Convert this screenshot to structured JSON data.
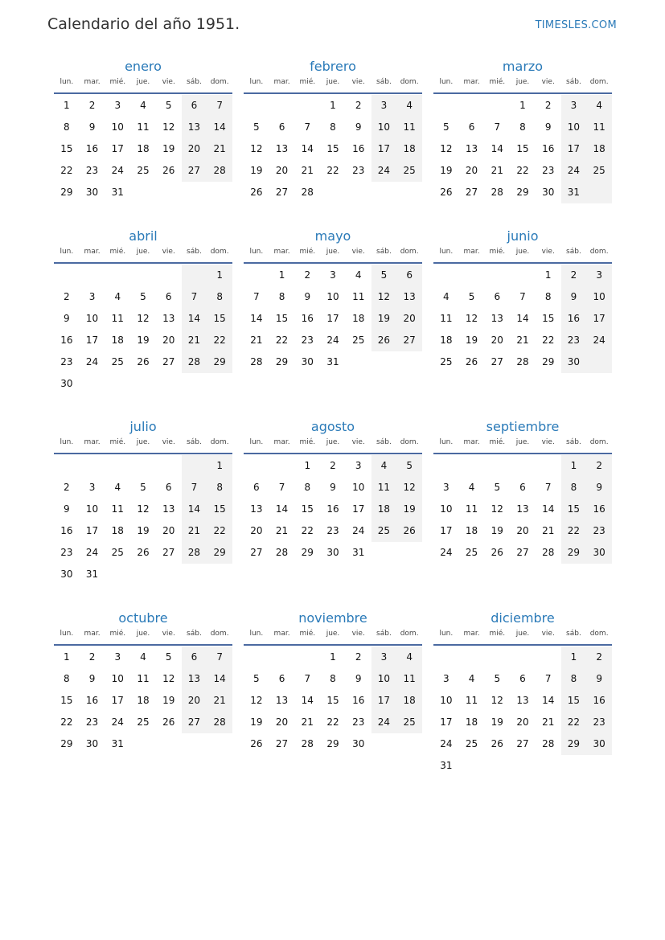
{
  "page": {
    "title": "Calendario del año 1951.",
    "brand": "TIMESLES.COM"
  },
  "weekdays": [
    "lun.",
    "mar.",
    "mié.",
    "jue.",
    "vie.",
    "sáb.",
    "dom."
  ],
  "months": [
    {
      "name": "enero",
      "offset": 0,
      "days": 31
    },
    {
      "name": "febrero",
      "offset": 3,
      "days": 28
    },
    {
      "name": "marzo",
      "offset": 3,
      "days": 31
    },
    {
      "name": "abril",
      "offset": 6,
      "days": 30
    },
    {
      "name": "mayo",
      "offset": 1,
      "days": 31
    },
    {
      "name": "junio",
      "offset": 4,
      "days": 30
    },
    {
      "name": "julio",
      "offset": 6,
      "days": 31
    },
    {
      "name": "agosto",
      "offset": 2,
      "days": 31
    },
    {
      "name": "septiembre",
      "offset": 5,
      "days": 30
    },
    {
      "name": "octubre",
      "offset": 0,
      "days": 31
    },
    {
      "name": "noviembre",
      "offset": 3,
      "days": 30
    },
    {
      "name": "diciembre",
      "offset": 5,
      "days": 31
    }
  ],
  "colors": {
    "accent": "#2a7ab8",
    "rule": "#4b6aa1",
    "weekend_bg": "#f2f2f2"
  }
}
